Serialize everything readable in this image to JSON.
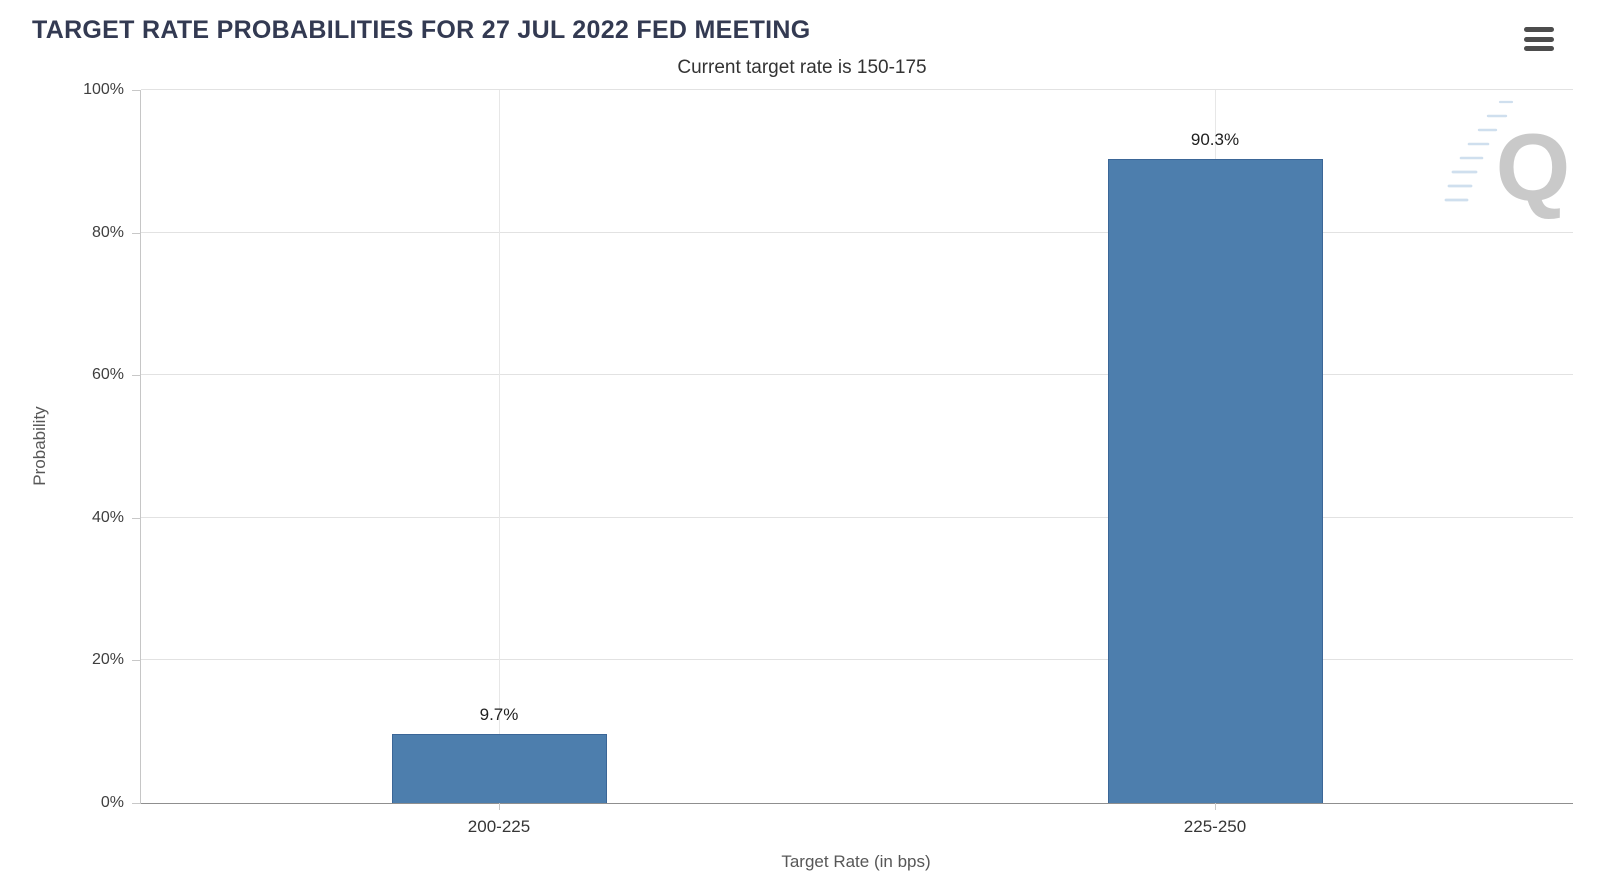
{
  "header": {
    "title": "TARGET RATE PROBABILITIES FOR 27 JUL 2022 FED MEETING",
    "menu_icon": "hamburger-menu-icon"
  },
  "watermark": {
    "icon": "quikstrike-q-watermark",
    "letter": "Q"
  },
  "chart_data": {
    "type": "bar",
    "title": "Current target rate is 150-175",
    "categories": [
      "200-225",
      "225-250"
    ],
    "values": [
      9.7,
      90.3
    ],
    "value_labels": [
      "9.7%",
      "90.3%"
    ],
    "xlabel": "Target Rate (in bps)",
    "ylabel": "Probability",
    "ylim": [
      0,
      100
    ],
    "ytick_step": 20,
    "ytick_labels": [
      "0%",
      "20%",
      "40%",
      "60%",
      "80%",
      "100%"
    ],
    "grid": true,
    "legend": "none",
    "colors": {
      "bar_fill": "#4d7ead",
      "bar_border": "#3b6697",
      "title": "#333a52",
      "subtitle": "#333333",
      "watermark": "#c9c9c9",
      "watermark_lines": "#cfdfee"
    }
  }
}
